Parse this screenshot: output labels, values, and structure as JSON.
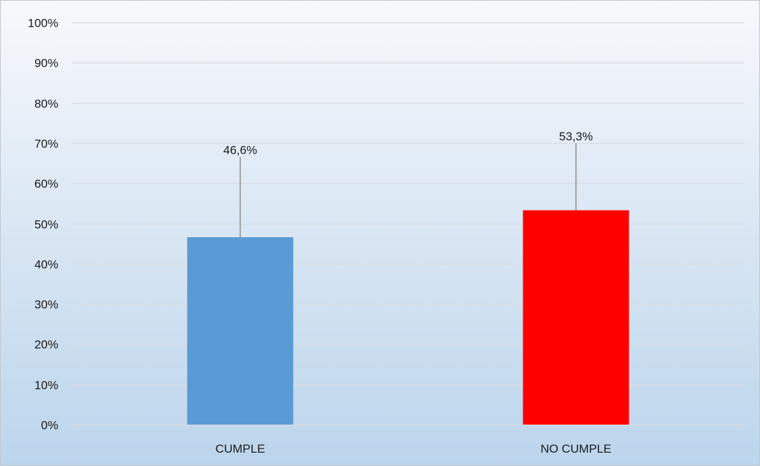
{
  "chart_data": {
    "type": "bar",
    "title": "",
    "xlabel": "",
    "ylabel": "",
    "categories": [
      "CUMPLE",
      "NO CUMPLE"
    ],
    "values": [
      46.6,
      53.3
    ],
    "data_labels": [
      "46,6%",
      "53,3%"
    ],
    "error_upper": [
      66.6,
      70.0
    ],
    "ylim": [
      0,
      100
    ],
    "yticks": [
      0,
      10,
      20,
      30,
      40,
      50,
      60,
      70,
      80,
      90,
      100
    ],
    "ytick_labels": [
      "0%",
      "10%",
      "20%",
      "30%",
      "40%",
      "50%",
      "60%",
      "70%",
      "80%",
      "90%",
      "100%"
    ],
    "grid": true,
    "legend": "none",
    "colors": [
      "#5b9bd5",
      "#ff0000"
    ],
    "gridline_color": "#d9dde3",
    "error_bar_color": "#8c8c8c"
  }
}
